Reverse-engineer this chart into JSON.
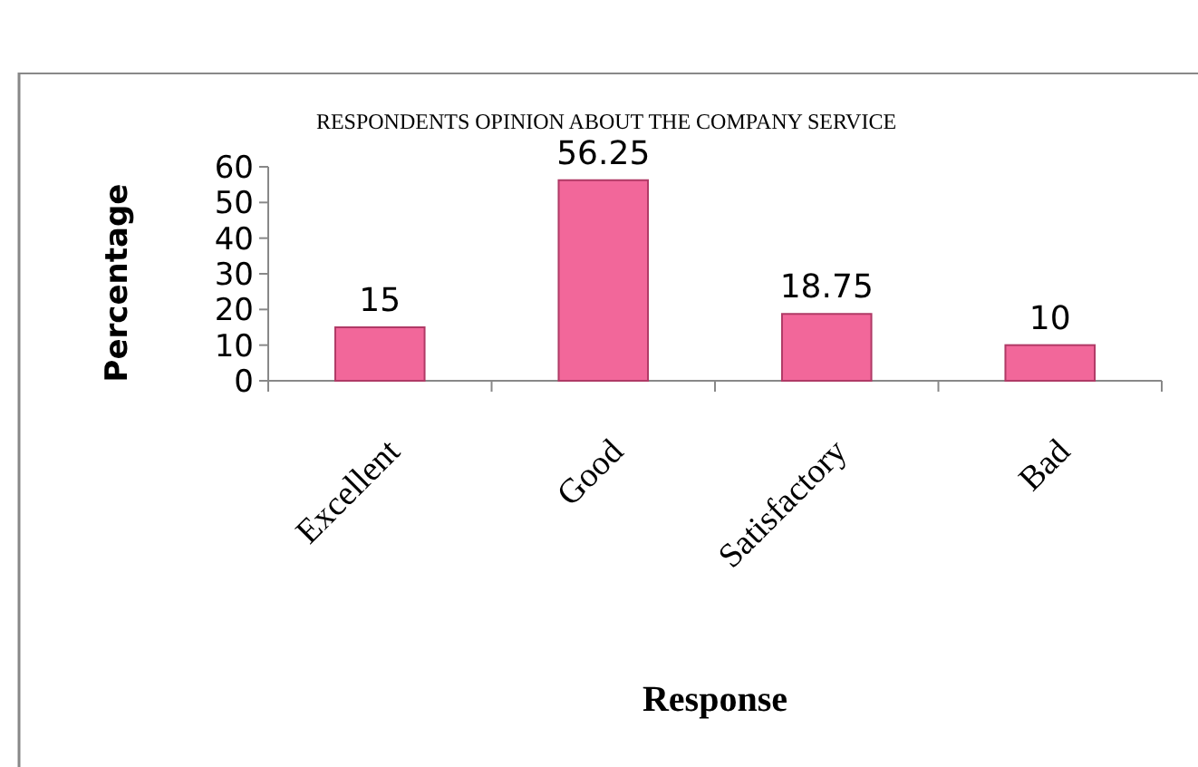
{
  "chart_data": {
    "type": "bar",
    "title": "RESPONDENTS OPINION ABOUT THE COMPANY SERVICE",
    "xlabel": "Response",
    "ylabel": "Percentage",
    "categories": [
      "Excellent",
      "Good",
      "Satisfactory",
      "Bad"
    ],
    "values": [
      15,
      56.25,
      18.75,
      10
    ],
    "color": "#f2679a",
    "ylim": [
      0,
      60
    ],
    "yticks": [
      0,
      10,
      20,
      30,
      40,
      50,
      60
    ],
    "data_labels": true
  }
}
